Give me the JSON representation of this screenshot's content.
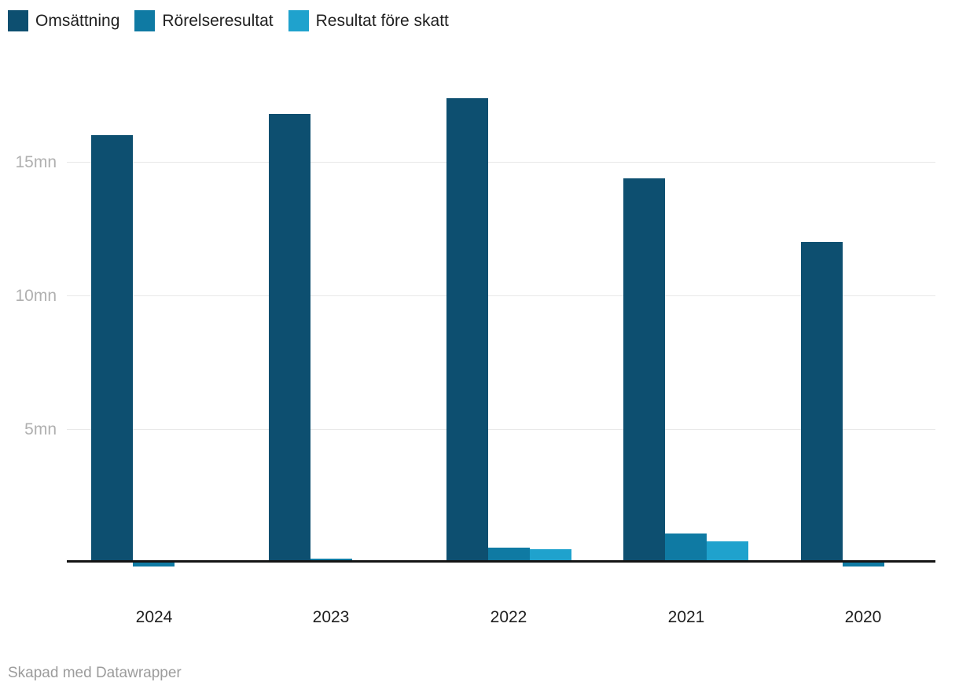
{
  "legend": {
    "items": [
      {
        "label": "Omsättning",
        "color": "#0d4f70"
      },
      {
        "label": "Rörelseresultat",
        "color": "#0f7aa3"
      },
      {
        "label": "Resultat före skatt",
        "color": "#1fa2cd"
      }
    ]
  },
  "chart_data": {
    "type": "bar",
    "title": "",
    "categories": [
      "2024",
      "2023",
      "2022",
      "2021",
      "2020"
    ],
    "series": [
      {
        "name": "Omsättning",
        "color": "#0d4f70",
        "values": [
          16.0,
          16.8,
          17.4,
          14.4,
          12.0
        ]
      },
      {
        "name": "Rörelseresultat",
        "color": "#0f7aa3",
        "values": [
          -0.15,
          0.15,
          0.55,
          1.1,
          -0.15
        ]
      },
      {
        "name": "Resultat före skatt",
        "color": "#1fa2cd",
        "values": [
          0,
          0.05,
          0.5,
          0.8,
          0.05
        ]
      }
    ],
    "unit": "mn",
    "xlabel": "",
    "ylabel": "",
    "ylim": [
      -0.3,
      17.6
    ],
    "grid": true,
    "legend_position": "top",
    "y_axis": {
      "ticks": [
        {
          "value": 5,
          "label": "5mn"
        },
        {
          "value": 10,
          "label": "10mn"
        },
        {
          "value": 15,
          "label": "15mn"
        }
      ]
    }
  },
  "footer": {
    "credit": "Skapad med Datawrapper"
  }
}
